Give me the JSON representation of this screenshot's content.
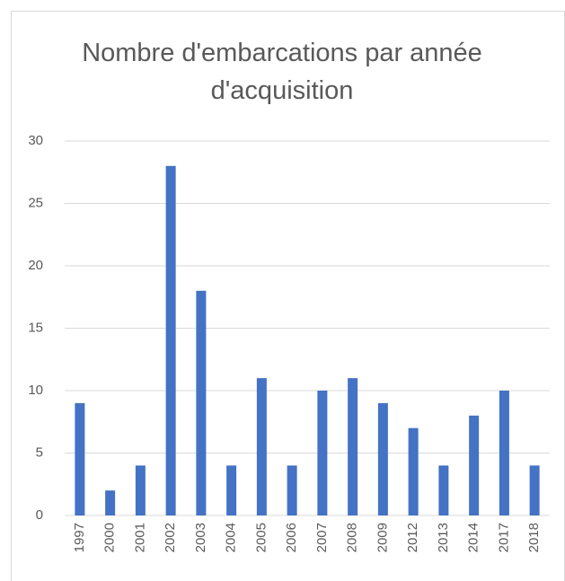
{
  "chart_data": {
    "type": "bar",
    "title": "Nombre d'embarcations par année d'acquisition",
    "categories": [
      "1997",
      "2000",
      "2001",
      "2002",
      "2003",
      "2004",
      "2005",
      "2006",
      "2007",
      "2008",
      "2009",
      "2012",
      "2013",
      "2014",
      "2017",
      "2018"
    ],
    "values": [
      9,
      2,
      4,
      28,
      18,
      4,
      11,
      4,
      10,
      11,
      9,
      7,
      4,
      8,
      10,
      4
    ],
    "color": "#4472c4",
    "ylim": [
      0,
      30
    ],
    "yticks": [
      0,
      5,
      10,
      15,
      20,
      25,
      30
    ],
    "grid": true
  }
}
